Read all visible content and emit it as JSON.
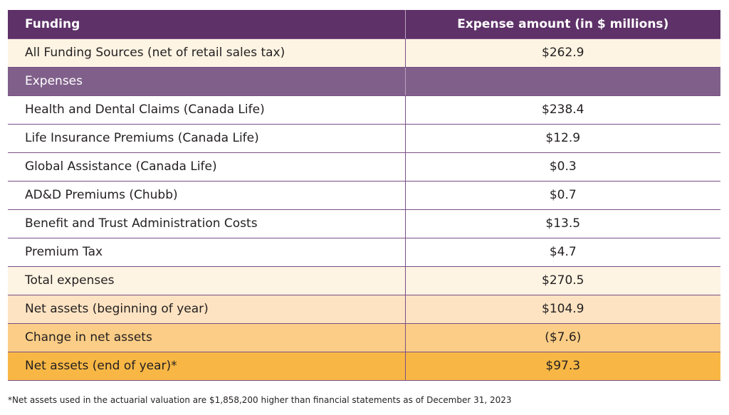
{
  "header": {
    "col1": "Funding",
    "col2": "Expense amount (in $ millions)"
  },
  "rows": [
    {
      "label": "All Funding Sources (net of retail sales tax)",
      "value": "$262.9",
      "style": "cream"
    },
    {
      "label": "Expenses",
      "value": "",
      "style": "section"
    },
    {
      "label": "Health and Dental Claims (Canada Life)",
      "value": "$238.4",
      "style": "white"
    },
    {
      "label": "Life Insurance Premiums (Canada Life)",
      "value": "$12.9",
      "style": "white"
    },
    {
      "label": "Global Assistance (Canada Life)",
      "value": "$0.3",
      "style": "white"
    },
    {
      "label": "AD&D Premiums (Chubb)",
      "value": "$0.7",
      "style": "white"
    },
    {
      "label": "Benefit and Trust Administration Costs",
      "value": "$13.5",
      "style": "white"
    },
    {
      "label": "Premium Tax",
      "value": "$4.7",
      "style": "white"
    },
    {
      "label": "Total expenses",
      "value": "$270.5",
      "style": "cream"
    },
    {
      "label": "Net assets (beginning of year)",
      "value": "$104.9",
      "style": "peach"
    },
    {
      "label": "Change in net assets",
      "value": "($7.6)",
      "style": "apricot"
    },
    {
      "label": "Net assets (end of year)*",
      "value": "$97.3",
      "style": "gold"
    }
  ],
  "footnote": "*Net assets used in the actuarial valuation are $1,858,200 higher than financial statements as of December 31, 2023",
  "colors": {
    "header_bg": "#5e3168",
    "section_bg": "#80608b",
    "cream": "#fdf4e3",
    "peach": "#fde3c2",
    "apricot": "#fbcd86",
    "gold": "#f8b745"
  }
}
